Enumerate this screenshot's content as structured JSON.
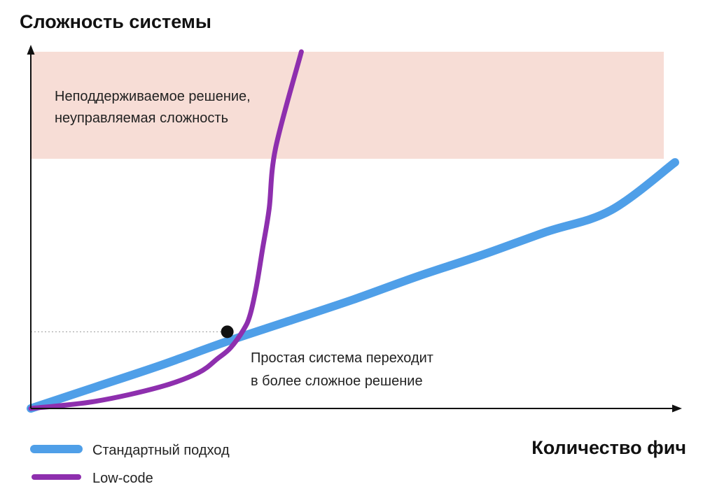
{
  "chart_data": {
    "type": "line",
    "title": "Сложность системы",
    "xlabel": "Количество фич",
    "ylabel": "",
    "xlim": [
      0,
      100
    ],
    "ylim": [
      0,
      100
    ],
    "grid": false,
    "legend_position": "bottom-left",
    "zone": {
      "label_lines": [
        "Неподдерживаемое решение,",
        "неуправляемая сложность"
      ],
      "y_from": 70,
      "y_to": 102,
      "color": "#f7ddd6"
    },
    "series": [
      {
        "name": "Стандартный подход",
        "color": "#4f9fe8",
        "x": [
          0,
          10,
          20,
          30,
          40,
          50,
          60,
          70,
          80,
          90,
          100
        ],
        "y": [
          0,
          6,
          12,
          18.5,
          24.5,
          30.5,
          37,
          43,
          49.5,
          55.5,
          69
        ]
      },
      {
        "name": "Low-code",
        "color": "#8e2fae",
        "x": [
          0,
          10,
          20,
          26,
          29,
          31,
          33,
          34,
          35,
          36,
          37,
          38,
          42
        ],
        "y": [
          0,
          2,
          6,
          10,
          14,
          17,
          22,
          26,
          34,
          45,
          56,
          73,
          100
        ]
      }
    ],
    "crossover": {
      "x": 30.5,
      "y": 21.5,
      "label_lines": [
        "Простая система переходит",
        "в более сложное решение"
      ]
    }
  }
}
